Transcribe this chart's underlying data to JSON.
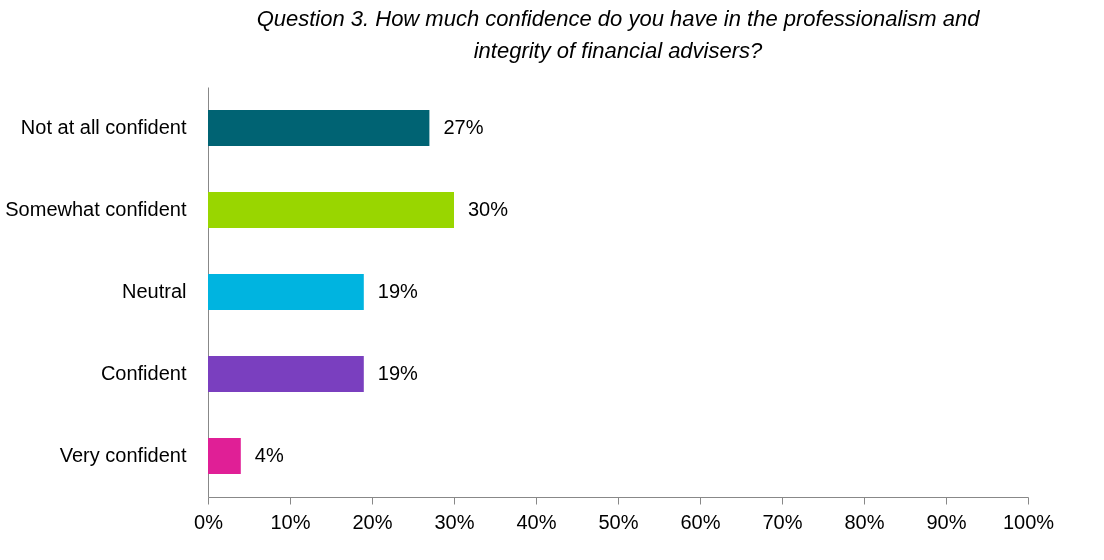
{
  "chart_data": {
    "type": "bar",
    "orientation": "horizontal",
    "title": "Question 3. How much confidence do you have in the professionalism and integrity of financial advisers?",
    "categories": [
      "Not at all confident",
      "Somewhat confident",
      "Neutral",
      "Confident",
      "Very confident"
    ],
    "values": [
      27,
      30,
      19,
      19,
      4
    ],
    "colors": [
      "#006373",
      "#99d600",
      "#00b4e0",
      "#7a3fbf",
      "#e01f96"
    ],
    "xlim": [
      0,
      100
    ],
    "xticks": [
      {
        "value": 0,
        "label": "0%"
      },
      {
        "value": 10,
        "label": "10%"
      },
      {
        "value": 20,
        "label": "20%"
      },
      {
        "value": 30,
        "label": "30%"
      },
      {
        "value": 40,
        "label": "40%"
      },
      {
        "value": 50,
        "label": "50%"
      },
      {
        "value": 60,
        "label": "60%"
      },
      {
        "value": 70,
        "label": "70%"
      },
      {
        "value": 80,
        "label": "80%"
      },
      {
        "value": 90,
        "label": "90%"
      },
      {
        "value": 100,
        "label": "100%"
      }
    ],
    "value_labels": [
      "27%",
      "30%",
      "19%",
      "19%",
      "4%"
    ],
    "grid": false,
    "legend": false
  }
}
